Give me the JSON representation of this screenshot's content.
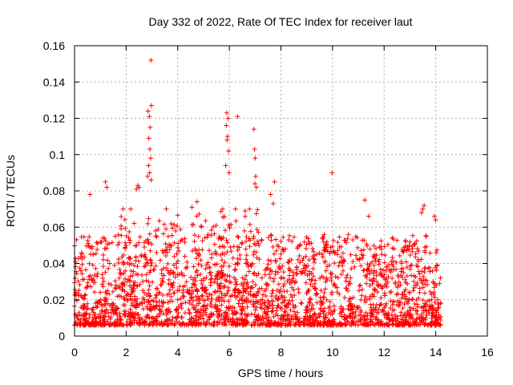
{
  "chart_data": {
    "type": "scatter",
    "title": "Day 332 of 2022, Rate Of TEC Index for receiver laut",
    "xlabel": "GPS time / hours",
    "ylabel": "ROTI / TECUs",
    "xlim": [
      0,
      16
    ],
    "ylim": [
      0,
      0.16
    ],
    "xticks": [
      0,
      2,
      4,
      6,
      8,
      10,
      12,
      14,
      16
    ],
    "yticks": [
      0,
      0.02,
      0.04,
      0.06,
      0.08,
      0.1,
      0.12,
      0.14,
      0.16
    ],
    "xtick_labels": [
      "0",
      "2",
      "4",
      "6",
      "8",
      "10",
      "12",
      "14",
      "16"
    ],
    "ytick_labels": [
      "0",
      "0.02",
      "0.04",
      "0.06",
      "0.08",
      "0.1",
      "0.12",
      "0.14",
      "0.16"
    ],
    "grid": true,
    "marker": "+",
    "color": "#ff0000",
    "series": [
      {
        "name": "ROTI",
        "points": [
          [
            2.96,
            0.152
          ],
          [
            2.98,
            0.127
          ],
          [
            2.85,
            0.124
          ],
          [
            2.9,
            0.121
          ],
          [
            2.93,
            0.115
          ],
          [
            2.88,
            0.109
          ],
          [
            2.92,
            0.103
          ],
          [
            2.95,
            0.098
          ],
          [
            2.87,
            0.094
          ],
          [
            2.91,
            0.09
          ],
          [
            2.97,
            0.086
          ],
          [
            2.83,
            0.088
          ],
          [
            5.9,
            0.123
          ],
          [
            5.95,
            0.12
          ],
          [
            5.88,
            0.116
          ],
          [
            5.93,
            0.11
          ],
          [
            5.91,
            0.108
          ],
          [
            5.97,
            0.102
          ],
          [
            5.86,
            0.094
          ],
          [
            5.99,
            0.09
          ],
          [
            6.32,
            0.121
          ],
          [
            6.95,
            0.114
          ],
          [
            6.98,
            0.103
          ],
          [
            7.0,
            0.098
          ],
          [
            7.02,
            0.088
          ],
          [
            6.99,
            0.084
          ],
          [
            7.05,
            0.082
          ],
          [
            9.98,
            0.09
          ],
          [
            7.75,
            0.085
          ],
          [
            1.2,
            0.085
          ],
          [
            1.25,
            0.082
          ],
          [
            2.45,
            0.083
          ],
          [
            2.5,
            0.082
          ],
          [
            2.4,
            0.081
          ],
          [
            0.6,
            0.078
          ],
          [
            11.25,
            0.075
          ],
          [
            13.55,
            0.072
          ],
          [
            13.5,
            0.07
          ],
          [
            4.75,
            0.074
          ],
          [
            4.55,
            0.071
          ],
          [
            7.6,
            0.078
          ],
          [
            7.7,
            0.073
          ],
          [
            11.4,
            0.066
          ],
          [
            13.45,
            0.068
          ],
          [
            13.95,
            0.066
          ],
          [
            14.0,
            0.064
          ]
        ],
        "noise_band": {
          "x_range": [
            0,
            14.2
          ],
          "y_range": [
            0.004,
            0.07
          ],
          "count": 2600,
          "seed": 332
        }
      }
    ]
  }
}
